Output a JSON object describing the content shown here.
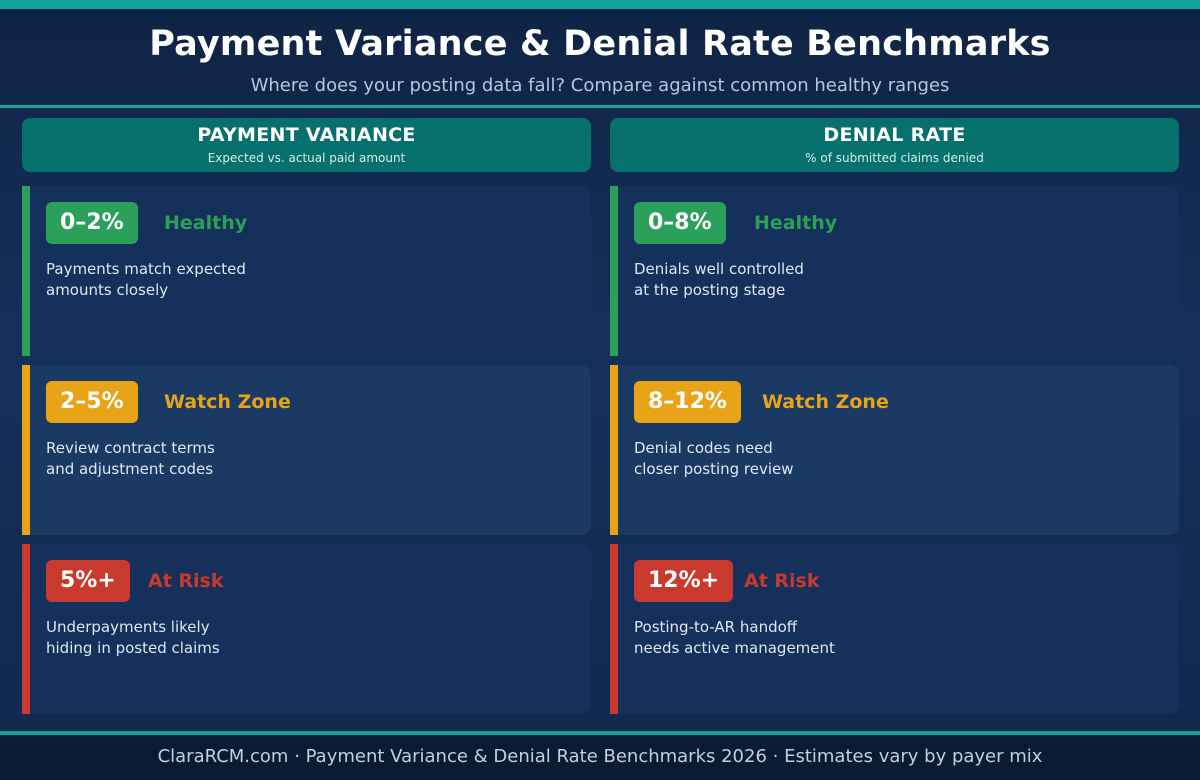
{
  "header": {
    "title": "Payment Variance & Denial Rate Benchmarks",
    "subtitle": "Where does your posting data fall? Compare against common healthy ranges"
  },
  "colors": {
    "teal": "#12a3a0",
    "header_bg": "#06706c",
    "healthy": "#2aa05a",
    "watch": "#e8a317",
    "risk": "#c93a2e"
  },
  "columns": [
    {
      "title": "PAYMENT VARIANCE",
      "subtitle": "Expected vs. actual paid amount",
      "tiers": [
        {
          "range": "0–2%",
          "status": "Healthy",
          "line1": "Payments match expected",
          "line2": "amounts closely"
        },
        {
          "range": "2–5%",
          "status": "Watch Zone",
          "line1": "Review contract terms",
          "line2": "and adjustment codes"
        },
        {
          "range": "5%+",
          "status": "At Risk",
          "line1": "Underpayments likely",
          "line2": "hiding in posted claims"
        }
      ]
    },
    {
      "title": "DENIAL RATE",
      "subtitle": "% of submitted claims denied",
      "tiers": [
        {
          "range": "0–8%",
          "status": "Healthy",
          "line1": "Denials well controlled",
          "line2": "at the posting stage"
        },
        {
          "range": "8–12%",
          "status": "Watch Zone",
          "line1": "Denial codes need",
          "line2": "closer posting review"
        },
        {
          "range": "12%+",
          "status": "At Risk",
          "line1": "Posting-to-AR handoff",
          "line2": "needs active management"
        }
      ]
    }
  ],
  "footer": {
    "text": "ClaraRCM.com · Payment Variance & Denial Rate Benchmarks 2026 · Estimates vary by payer mix"
  }
}
